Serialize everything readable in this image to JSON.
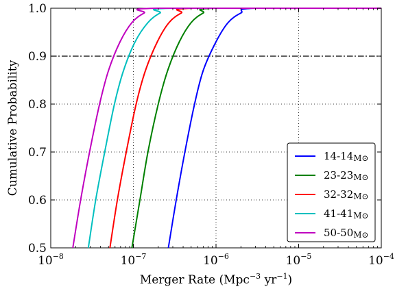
{
  "chart_data": {
    "type": "line",
    "xlabel": "Merger Rate (Mpc",
    "xlabel_exp": "−3",
    "xlabel_unit": " yr",
    "xlabel_exp2": "−1",
    "xlabel_close": ")",
    "ylabel": "Cumulative Probability",
    "xscale": "log",
    "xlim": [
      1e-08,
      0.0001
    ],
    "ylim": [
      0.5,
      1.0
    ],
    "grid": true,
    "legend_position": "lower-right",
    "xticks": [
      {
        "value": 1e-08,
        "base": "10",
        "exp": "−8"
      },
      {
        "value": 1e-07,
        "base": "10",
        "exp": "−7"
      },
      {
        "value": 1e-06,
        "base": "10",
        "exp": "−6"
      },
      {
        "value": 1e-05,
        "base": "10",
        "exp": "−5"
      },
      {
        "value": 0.0001,
        "base": "10",
        "exp": "−4"
      }
    ],
    "yticks": [
      {
        "value": 0.5,
        "label": "0.5"
      },
      {
        "value": 0.6,
        "label": "0.6"
      },
      {
        "value": 0.7,
        "label": "0.7"
      },
      {
        "value": 0.8,
        "label": "0.8"
      },
      {
        "value": 0.9,
        "label": "0.9"
      },
      {
        "value": 1.0,
        "label": "1.0"
      }
    ],
    "reference_line": {
      "y": 0.9,
      "style": "dashdot",
      "color": "#000000"
    },
    "series": [
      {
        "name": "14-14",
        "subscript": "M⊙",
        "color": "#0000ff",
        "x": [
          2.65e-07,
          3.3e-07,
          4.2e-07,
          5.5e-07,
          7e-07,
          1e-06,
          1.4e-06,
          2e-06,
          3e-06,
          0.0001
        ],
        "y": [
          0.5,
          0.6,
          0.7,
          0.8,
          0.87,
          0.93,
          0.97,
          0.99,
          1.0,
          1.0
        ]
      },
      {
        "name": "23-23",
        "subscript": "M⊙",
        "color": "#008000",
        "x": [
          9.6e-08,
          1.2e-07,
          1.5e-07,
          2e-07,
          2.6e-07,
          3.6e-07,
          5e-07,
          7e-07,
          1e-06,
          0.0001
        ],
        "y": [
          0.5,
          0.6,
          0.7,
          0.8,
          0.87,
          0.93,
          0.97,
          0.99,
          1.0,
          1.0
        ]
      },
      {
        "name": "32-32",
        "subscript": "M⊙",
        "color": "#ff0000",
        "x": [
          5.2e-08,
          6.4e-08,
          8.2e-08,
          1.08e-07,
          1.4e-07,
          1.95e-07,
          2.7e-07,
          3.8e-07,
          5.5e-07,
          0.0001
        ],
        "y": [
          0.5,
          0.6,
          0.7,
          0.8,
          0.87,
          0.93,
          0.97,
          0.99,
          1.0,
          1.0
        ]
      },
      {
        "name": "41-41",
        "subscript": "M⊙",
        "color": "#00bfbf",
        "x": [
          2.85e-08,
          3.5e-08,
          4.5e-08,
          5.9e-08,
          7.6e-08,
          1.05e-07,
          1.5e-07,
          2.1e-07,
          3e-07,
          0.0001
        ],
        "y": [
          0.5,
          0.6,
          0.7,
          0.8,
          0.87,
          0.93,
          0.97,
          0.99,
          1.0,
          1.0
        ]
      },
      {
        "name": "50-50",
        "subscript": "M⊙",
        "color": "#bf00bf",
        "x": [
          1.85e-08,
          2.3e-08,
          2.95e-08,
          3.9e-08,
          5e-08,
          6.9e-08,
          9.6e-08,
          1.35e-07,
          1.95e-07,
          0.0001
        ],
        "y": [
          0.5,
          0.6,
          0.7,
          0.8,
          0.87,
          0.93,
          0.97,
          0.99,
          1.0,
          1.0
        ]
      }
    ]
  }
}
